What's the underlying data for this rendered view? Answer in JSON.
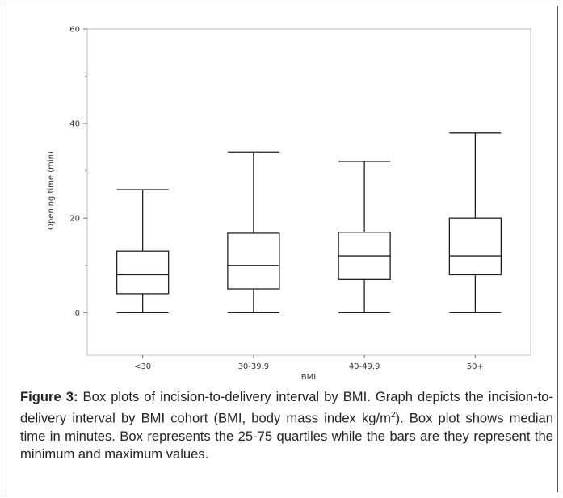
{
  "chart_data": {
    "type": "box",
    "title": "",
    "xlabel": "BMI",
    "ylabel": "Opening time (min)",
    "ylim": [
      -9,
      60
    ],
    "yticks": [
      0,
      20,
      40,
      60
    ],
    "grid": false,
    "categories": [
      "<30",
      "30-39.9",
      "40-49.9",
      "50+"
    ],
    "boxes": [
      {
        "category": "<30",
        "min": 0,
        "q1": 4,
        "median": 8,
        "q3": 13,
        "max": 26
      },
      {
        "category": "30-39.9",
        "min": 0,
        "q1": 5,
        "median": 10,
        "q3": 16.8,
        "max": 34
      },
      {
        "category": "40-49.9",
        "min": 0,
        "q1": 7,
        "median": 12,
        "q3": 17,
        "max": 32
      },
      {
        "category": "50+",
        "min": 0,
        "q1": 8,
        "median": 12,
        "q3": 20,
        "max": 38
      }
    ]
  },
  "caption": {
    "label": "Figure 3:",
    "text_before_sup": " Box plots of incision-to-delivery interval by BMI. Graph depicts the incision-to-delivery interval by BMI cohort (BMI, body mass index kg/m",
    "sup": "2",
    "text_after_sup": "). Box plot shows median time in minutes. Box represents the 25-75 quartiles while the bars are they represent the minimum and maximum values."
  }
}
